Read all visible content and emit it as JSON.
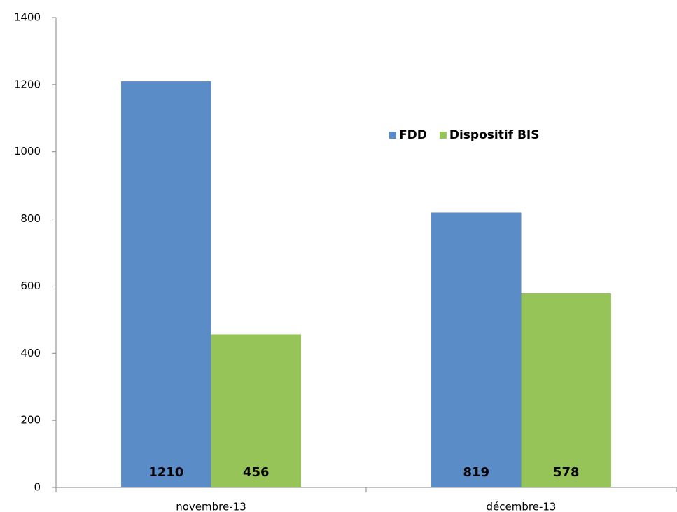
{
  "chart_data": {
    "type": "bar",
    "categories": [
      "novembre-13",
      "décembre-13"
    ],
    "series": [
      {
        "name": "FDD",
        "color": "#5a8cc8",
        "values": [
          1210,
          819
        ]
      },
      {
        "name": "Dispositif BIS",
        "color": "#97c459",
        "values": [
          456,
          578
        ]
      }
    ],
    "ylim": [
      0,
      1400
    ],
    "yticks": [
      0,
      200,
      400,
      600,
      800,
      1000,
      1200,
      1400
    ],
    "grid": false,
    "legend": "upper right"
  }
}
